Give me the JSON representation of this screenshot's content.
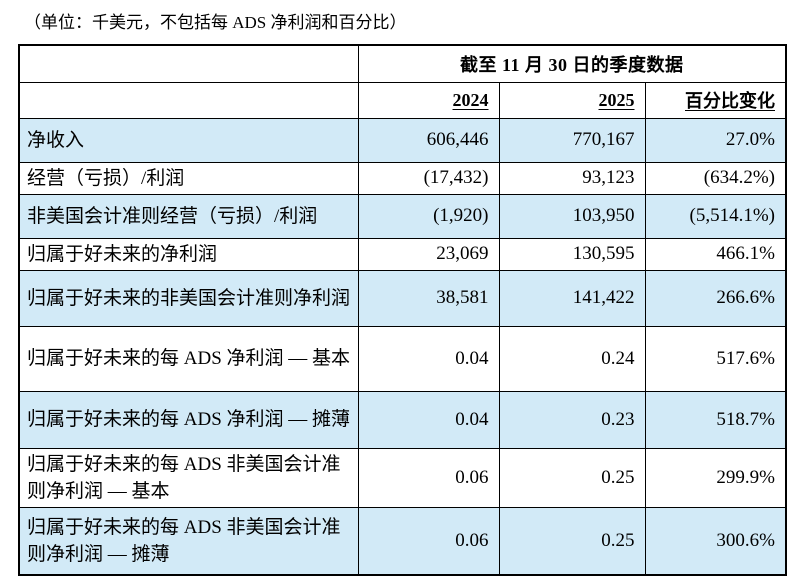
{
  "note": "（单位：千美元，不包括每 ADS 净利润和百分比）",
  "table": {
    "period_header": "截至 11 月 30 日的季度数据",
    "columns": [
      "2024",
      "2025",
      "百分比变化"
    ],
    "rows": [
      {
        "label": "净收入",
        "y2024": "606,446",
        "y2025": "770,167",
        "pct_change": "27.0%"
      },
      {
        "label": "经营（亏损）/利润",
        "y2024": "(17,432)",
        "y2025": "93,123",
        "pct_change": "(634.2%)"
      },
      {
        "label": "非美国会计准则经营（亏损）/利润",
        "y2024": "(1,920)",
        "y2025": "103,950",
        "pct_change": "(5,514.1%)"
      },
      {
        "label": "归属于好未来的净利润",
        "y2024": "23,069",
        "y2025": "130,595",
        "pct_change": "466.1%"
      },
      {
        "label": "归属于好未来的非美国会计准则净利润",
        "y2024": "38,581",
        "y2025": "141,422",
        "pct_change": "266.6%"
      },
      {
        "label": "归属于好未来的每 ADS 净利润 — 基本",
        "y2024": "0.04",
        "y2025": "0.24",
        "pct_change": "517.6%"
      },
      {
        "label": "归属于好未来的每 ADS 净利润 — 摊薄",
        "y2024": "0.04",
        "y2025": "0.23",
        "pct_change": "518.7%"
      },
      {
        "label": "归属于好未来的每 ADS 非美国会计准则净利润 — 基本",
        "y2024": "0.06",
        "y2025": "0.25",
        "pct_change": "299.9%"
      },
      {
        "label": "归属于好未来的每 ADS 非美国会计准则净利润 — 摊薄",
        "y2024": "0.06",
        "y2025": "0.25",
        "pct_change": "300.6%"
      }
    ],
    "colors": {
      "row_highlight": "#d2eaf7",
      "border": "#000000",
      "text": "#000000",
      "background": "#ffffff"
    }
  }
}
